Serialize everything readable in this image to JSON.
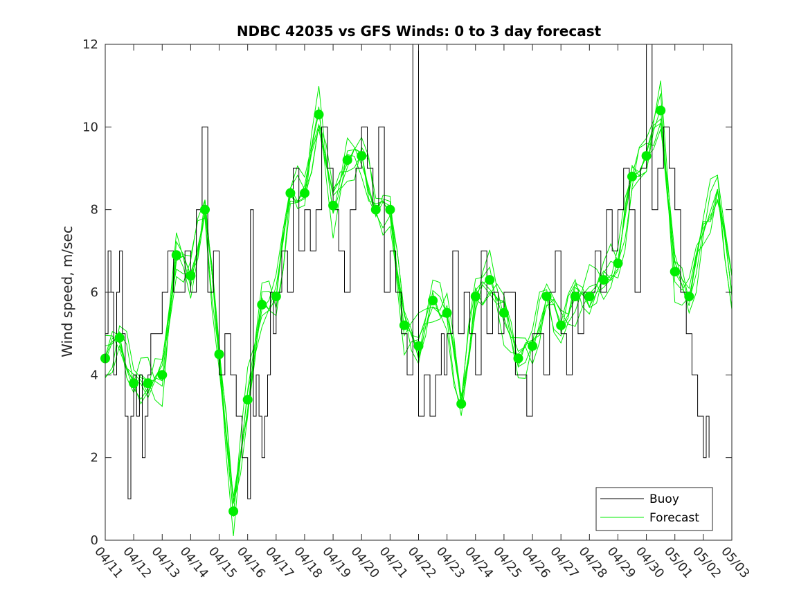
{
  "chart_data": {
    "type": "line",
    "title": "NDBC 42035 vs GFS Winds: 0 to 3 day forecast",
    "xlabel": "",
    "ylabel": "Wind speed, m/sec",
    "x_ticks": [
      "04/11",
      "04/12",
      "04/13",
      "04/14",
      "04/15",
      "04/16",
      "04/17",
      "04/18",
      "04/19",
      "04/20",
      "04/21",
      "04/22",
      "04/23",
      "04/24",
      "04/25",
      "04/26",
      "04/27",
      "04/28",
      "04/29",
      "04/30",
      "05/01",
      "05/02",
      "05/03"
    ],
    "xlim": [
      0,
      22
    ],
    "ylim": [
      0,
      12
    ],
    "y_ticks": [
      0,
      2,
      4,
      6,
      8,
      10,
      12
    ],
    "grid": false,
    "legend_position": "bottom-right",
    "colors": {
      "buoy": "#000000",
      "forecast": "#00ee00"
    },
    "series": [
      {
        "name": "Buoy",
        "style": "line",
        "x": [
          0,
          0.1,
          0.2,
          0.3,
          0.4,
          0.5,
          0.6,
          0.7,
          0.8,
          0.9,
          1.0,
          1.1,
          1.2,
          1.3,
          1.4,
          1.5,
          1.6,
          1.7,
          1.8,
          1.9,
          2.0,
          2.2,
          2.4,
          2.6,
          2.8,
          3.0,
          3.2,
          3.4,
          3.6,
          3.8,
          4.0,
          4.2,
          4.4,
          4.6,
          4.8,
          5.0,
          5.1,
          5.2,
          5.3,
          5.4,
          5.5,
          5.6,
          5.7,
          5.8,
          5.9,
          6.0,
          6.2,
          6.4,
          6.6,
          6.8,
          7.0,
          7.2,
          7.4,
          7.6,
          7.8,
          8.0,
          8.2,
          8.4,
          8.6,
          8.8,
          9.0,
          9.2,
          9.4,
          9.6,
          9.8,
          10.0,
          10.2,
          10.4,
          10.6,
          10.8,
          11.0,
          11.2,
          11.4,
          11.6,
          11.8,
          11.9,
          12.0,
          12.2,
          12.4,
          12.6,
          12.8,
          13.0,
          13.2,
          13.4,
          13.6,
          13.8,
          14.0,
          14.2,
          14.4,
          14.6,
          14.8,
          15.0,
          15.2,
          15.4,
          15.6,
          15.8,
          16.0,
          16.2,
          16.4,
          16.6,
          16.8,
          17.0,
          17.2,
          17.4,
          17.6,
          17.8,
          18.0,
          18.2,
          18.4,
          18.6,
          18.8,
          19.0,
          19.2,
          19.4,
          19.6,
          19.8,
          20.0,
          20.2,
          20.4,
          20.6,
          20.8,
          21.0,
          21.1,
          21.2
        ],
        "y": [
          5,
          7,
          6,
          4,
          6,
          7,
          5,
          3,
          1,
          3,
          4,
          3,
          4,
          2,
          3,
          4,
          5,
          5,
          5,
          5,
          6,
          7,
          6,
          6,
          7,
          6,
          8,
          10,
          6,
          7,
          4,
          5,
          4,
          3,
          2,
          1,
          8,
          3,
          4,
          3,
          2,
          3,
          4,
          6,
          5,
          6,
          7,
          6,
          9,
          7,
          8,
          7,
          8,
          10,
          9,
          8,
          7,
          6,
          8,
          9,
          10,
          9,
          8,
          10,
          6,
          7,
          6,
          5,
          4,
          12,
          3,
          4,
          3,
          4,
          5,
          4,
          5,
          7,
          5,
          6,
          5,
          4,
          7,
          5,
          6,
          5,
          6,
          6,
          4,
          4,
          3,
          5,
          5,
          4,
          6,
          7,
          5,
          4,
          6,
          5,
          6,
          6,
          7,
          6,
          8,
          7,
          8,
          9,
          8,
          6,
          9,
          12,
          8,
          9,
          10,
          9,
          8,
          6,
          5,
          4,
          3,
          2,
          3,
          2
        ],
        "color": "#000000"
      },
      {
        "name": "Forecast",
        "style": "line",
        "x": [
          0,
          0.5,
          1.0,
          1.5,
          2.0,
          2.5,
          3.0,
          3.5,
          4.0,
          4.5,
          5.0,
          5.5,
          6.0,
          6.5,
          7.0,
          7.5,
          8.0,
          8.5,
          9.0,
          9.5,
          10.0,
          10.5,
          11.0,
          11.5,
          12.0,
          12.5,
          13.0,
          13.5,
          14.0,
          14.5,
          15.0,
          15.5,
          16.0,
          16.5,
          17.0,
          17.5,
          18.0,
          18.5,
          19.0,
          19.5,
          20.0,
          20.5,
          21.0,
          21.5,
          22.0
        ],
        "y": [
          4.4,
          4.9,
          3.8,
          3.8,
          4.0,
          6.9,
          6.4,
          8.0,
          4.5,
          0.7,
          3.4,
          5.7,
          5.9,
          8.4,
          8.4,
          10.3,
          8.1,
          9.2,
          9.3,
          8.0,
          8.0,
          5.2,
          4.7,
          5.8,
          5.5,
          3.3,
          5.9,
          6.3,
          5.5,
          4.4,
          4.7,
          5.9,
          5.2,
          5.9,
          5.9,
          6.3,
          6.7,
          8.8,
          9.3,
          10.4,
          6.5,
          5.9,
          7.5,
          8.5,
          6.0
        ],
        "color": "#00ee00"
      },
      {
        "name": "",
        "style": "markers",
        "x": [
          0,
          0.5,
          1.0,
          1.5,
          2.0,
          2.5,
          3.0,
          3.5,
          4.0,
          4.5,
          5.0,
          5.5,
          6.0,
          6.5,
          7.0,
          7.5,
          8.0,
          8.5,
          9.0,
          9.5,
          10.0,
          10.5,
          11.0,
          11.5,
          12.0,
          12.5,
          13.0,
          13.5,
          14.0,
          14.5,
          15.0,
          15.5,
          16.0,
          16.5,
          17.0,
          17.5,
          18.0,
          18.5,
          19.0,
          19.5,
          20.0,
          20.5
        ],
        "y": [
          4.4,
          4.9,
          3.8,
          3.8,
          4.0,
          6.9,
          6.4,
          8.0,
          4.5,
          0.7,
          3.4,
          5.7,
          5.9,
          8.4,
          8.4,
          10.3,
          8.1,
          9.2,
          9.3,
          8.0,
          8.0,
          5.2,
          4.7,
          5.8,
          5.5,
          3.3,
          5.9,
          6.3,
          5.5,
          4.4,
          4.7,
          5.9,
          5.2,
          5.9,
          5.9,
          6.3,
          6.7,
          8.8,
          9.3,
          10.4,
          6.5,
          5.9
        ],
        "color": "#00ee00"
      }
    ]
  }
}
